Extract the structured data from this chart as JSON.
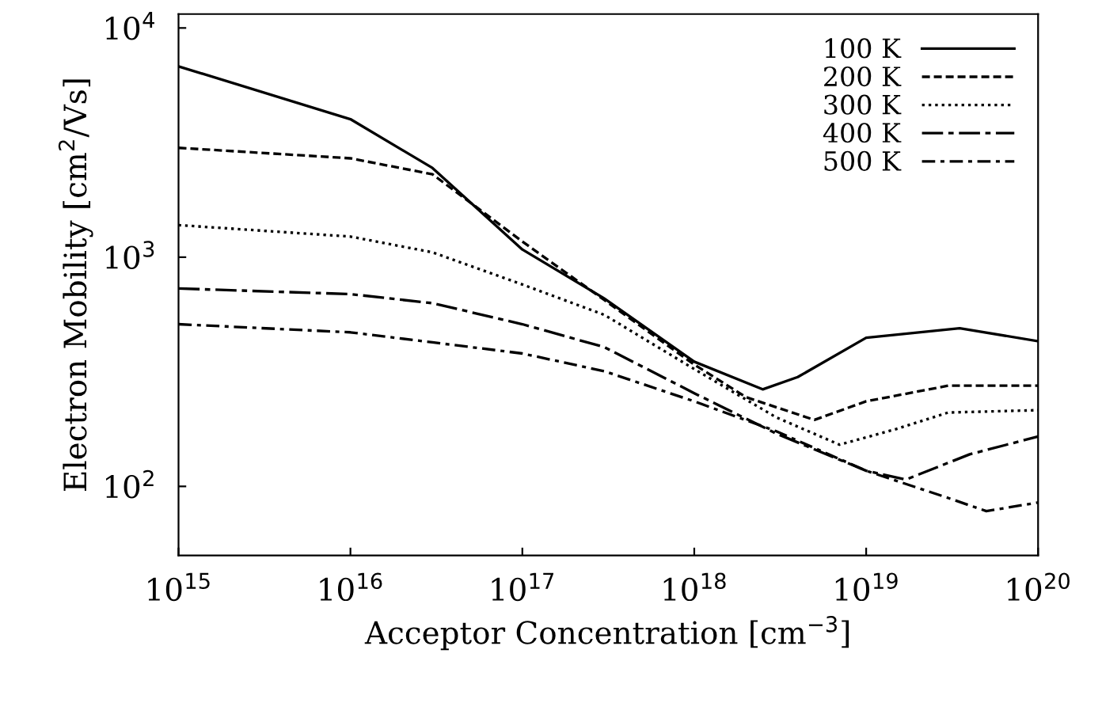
{
  "chart_data": {
    "type": "line",
    "xlabel": "Acceptor Concentration [cm$^{−3}$]",
    "ylabel": "Electron Mobility [cm$^{2}$/Vs]",
    "log": "xy",
    "xlim": [
      1000000000000000.0,
      1e+20
    ],
    "ylim": [
      50,
      11500
    ],
    "xticks": [
      {
        "value": 1000000000000000.0,
        "label": "10$^{15}$"
      },
      {
        "value": 1e+16,
        "label": "10$^{16}$"
      },
      {
        "value": 1e+17,
        "label": "10$^{17}$"
      },
      {
        "value": 1e+18,
        "label": "10$^{18}$"
      },
      {
        "value": 1e+19,
        "label": "10$^{19}$"
      },
      {
        "value": 1e+20,
        "label": "10$^{20}$"
      }
    ],
    "yticks": [
      {
        "value": 100,
        "label": "10$^{2}$"
      },
      {
        "value": 1000,
        "label": "10$^{3}$"
      },
      {
        "value": 10000,
        "label": "10$^{4}$"
      }
    ],
    "grid": false,
    "legend": "top right",
    "marker": "none",
    "series": [
      {
        "name": "100 K",
        "color": "#000000",
        "line_style": "solid",
        "x": [
          1000000000000000.0,
          1e+16,
          3e+16,
          1e+17,
          3e+17,
          1e+18,
          2.5e+18,
          4e+18,
          1e+19,
          3.5e+19,
          1e+20
        ],
        "values": [
          6800,
          4000,
          2450,
          1080,
          660,
          350,
          265,
          300,
          445,
          490,
          430
        ]
      },
      {
        "name": "200 K",
        "color": "#000000",
        "line_style": "dashed",
        "x": [
          1000000000000000.0,
          1e+16,
          3e+16,
          1e+17,
          3e+17,
          1e+18,
          2e+18,
          5e+18,
          1e+19,
          3e+19,
          1e+20
        ],
        "values": [
          3000,
          2700,
          2300,
          1170,
          650,
          340,
          245,
          195,
          235,
          275,
          275
        ]
      },
      {
        "name": "300 K",
        "color": "#000000",
        "line_style": "dotted",
        "x": [
          1000000000000000.0,
          1e+16,
          3e+16,
          1e+17,
          3e+17,
          1e+18,
          3e+18,
          7e+18,
          1.5e+19,
          3e+19,
          1e+20
        ],
        "values": [
          1380,
          1230,
          1050,
          760,
          560,
          325,
          200,
          152,
          178,
          210,
          215
        ]
      },
      {
        "name": "400 K",
        "color": "#000000",
        "line_style": "dashdot",
        "x": [
          1000000000000000.0,
          1e+16,
          3e+16,
          1e+17,
          3e+17,
          1e+18,
          3e+18,
          1e+19,
          1.7e+19,
          4e+19,
          1e+20
        ],
        "values": [
          730,
          690,
          630,
          510,
          405,
          255,
          170,
          117,
          107,
          138,
          165
        ]
      },
      {
        "name": "500 K",
        "color": "#000000",
        "line_style": "longdashdot",
        "x": [
          1000000000000000.0,
          1e+16,
          3e+16,
          1e+17,
          3e+17,
          1e+18,
          3e+18,
          1e+19,
          3e+19,
          5e+19,
          1e+20
        ],
        "values": [
          510,
          470,
          425,
          380,
          318,
          235,
          174,
          117,
          89,
          78,
          85
        ]
      }
    ]
  }
}
